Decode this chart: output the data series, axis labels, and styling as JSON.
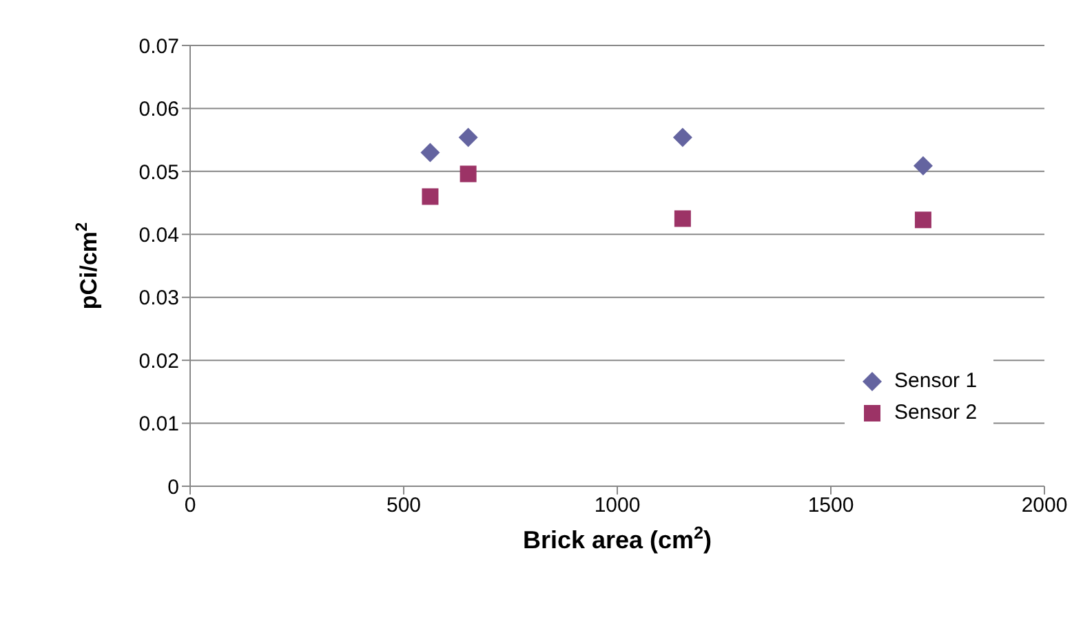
{
  "chart_data": {
    "type": "scatter",
    "xlabel": "Brick area (cm$^{2}$)",
    "ylabel": "pCi/cm$^{2}$",
    "xlim": [
      0,
      2000
    ],
    "xticks": [
      0,
      500,
      1000,
      1500,
      2000
    ],
    "ylim": [
      0,
      0.07
    ],
    "yticks": [
      0,
      0.01,
      0.02,
      0.03,
      0.04,
      0.05,
      0.06,
      0.07
    ],
    "x": [
      562,
      651,
      1153,
      1716
    ],
    "series": [
      {
        "name": "Sensor 1",
        "color": "#6464a0",
        "marker": "diamond",
        "values": [
          0.053,
          0.0554,
          0.0554,
          0.0509
        ]
      },
      {
        "name": "Sensor 2",
        "color": "#9c3366",
        "marker": "square",
        "values": [
          0.046,
          0.0496,
          0.0425,
          0.0423
        ]
      }
    ],
    "grid": "y",
    "legend": "bottom right"
  }
}
